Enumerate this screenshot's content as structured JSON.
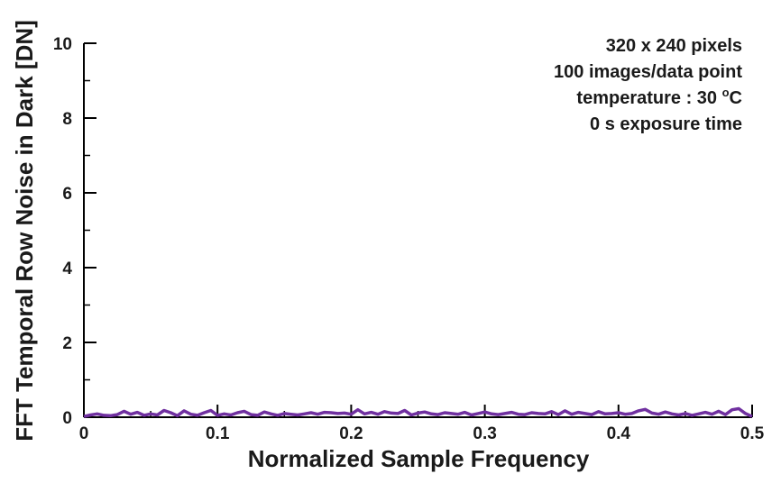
{
  "chart_data": {
    "type": "line",
    "xlabel": "Normalized Sample Frequency",
    "ylabel": "FFT Temporal Row Noise in Dark [DN]",
    "xlim": [
      0,
      0.5
    ],
    "ylim": [
      0,
      10
    ],
    "x_ticks": [
      0,
      0.1,
      0.2,
      0.3,
      0.4,
      0.5
    ],
    "x_tick_labels": [
      "0",
      "0.1",
      "0.2",
      "0.3",
      "0.4",
      "0.5"
    ],
    "y_ticks": [
      0,
      2,
      4,
      6,
      8,
      10
    ],
    "y_tick_labels": [
      "0",
      "2",
      "4",
      "6",
      "8",
      "10"
    ],
    "grid": false,
    "annotations": [
      "320 x 240 pixels",
      "100 images/data point",
      "temperature : 30 oC",
      "0 s exposure time"
    ],
    "series": [
      {
        "color": "#7030a0",
        "x": [
          0.0,
          0.005,
          0.01,
          0.015,
          0.02,
          0.025,
          0.03,
          0.035,
          0.04,
          0.045,
          0.05,
          0.055,
          0.06,
          0.065,
          0.07,
          0.075,
          0.08,
          0.085,
          0.09,
          0.095,
          0.1,
          0.105,
          0.11,
          0.115,
          0.12,
          0.125,
          0.13,
          0.135,
          0.14,
          0.145,
          0.15,
          0.155,
          0.16,
          0.165,
          0.17,
          0.175,
          0.18,
          0.185,
          0.19,
          0.195,
          0.2,
          0.205,
          0.21,
          0.215,
          0.22,
          0.225,
          0.23,
          0.235,
          0.24,
          0.245,
          0.25,
          0.255,
          0.26,
          0.265,
          0.27,
          0.275,
          0.28,
          0.285,
          0.29,
          0.295,
          0.3,
          0.305,
          0.31,
          0.315,
          0.32,
          0.325,
          0.33,
          0.335,
          0.34,
          0.345,
          0.35,
          0.355,
          0.36,
          0.365,
          0.37,
          0.375,
          0.38,
          0.385,
          0.39,
          0.395,
          0.4,
          0.405,
          0.41,
          0.415,
          0.42,
          0.425,
          0.43,
          0.435,
          0.44,
          0.445,
          0.45,
          0.455,
          0.46,
          0.465,
          0.47,
          0.475,
          0.48,
          0.485,
          0.49,
          0.495,
          0.5
        ],
        "y": [
          0.02,
          0.06,
          0.09,
          0.05,
          0.04,
          0.07,
          0.16,
          0.08,
          0.13,
          0.05,
          0.09,
          0.06,
          0.18,
          0.12,
          0.04,
          0.17,
          0.08,
          0.05,
          0.12,
          0.18,
          0.05,
          0.09,
          0.06,
          0.12,
          0.16,
          0.07,
          0.05,
          0.14,
          0.09,
          0.05,
          0.1,
          0.08,
          0.06,
          0.09,
          0.12,
          0.08,
          0.13,
          0.12,
          0.1,
          0.11,
          0.08,
          0.2,
          0.09,
          0.13,
          0.08,
          0.15,
          0.11,
          0.1,
          0.18,
          0.06,
          0.11,
          0.14,
          0.09,
          0.07,
          0.12,
          0.1,
          0.08,
          0.13,
          0.06,
          0.1,
          0.14,
          0.09,
          0.07,
          0.1,
          0.13,
          0.08,
          0.07,
          0.12,
          0.1,
          0.09,
          0.15,
          0.07,
          0.17,
          0.08,
          0.13,
          0.1,
          0.07,
          0.15,
          0.09,
          0.1,
          0.12,
          0.08,
          0.1,
          0.17,
          0.21,
          0.11,
          0.08,
          0.14,
          0.09,
          0.06,
          0.1,
          0.05,
          0.09,
          0.13,
          0.08,
          0.16,
          0.07,
          0.2,
          0.23,
          0.1,
          0.02
        ]
      }
    ]
  }
}
